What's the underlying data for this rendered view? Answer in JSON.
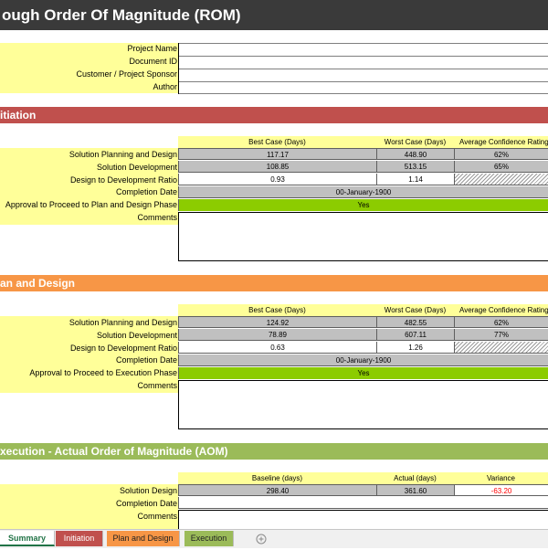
{
  "title": "ough Order Of Magnitude (ROM)",
  "project_fields": [
    {
      "label": "Project Name",
      "value": ""
    },
    {
      "label": "Document ID",
      "value": ""
    },
    {
      "label": "Customer / Project Sponsor",
      "value": ""
    },
    {
      "label": "Author",
      "value": ""
    }
  ],
  "initiation": {
    "heading": "itiation",
    "color": "#c0504d",
    "col_headers": [
      "Best Case (Days)",
      "Worst Case (Days)",
      "Average Confidence Rating"
    ],
    "rows": [
      {
        "label": "Solution Planning and Design",
        "best": "117.17",
        "worst": "448.90",
        "conf": "62%"
      },
      {
        "label": "Solution Development",
        "best": "108.85",
        "worst": "513.15",
        "conf": "65%"
      },
      {
        "label": "Design to Development Ratio",
        "best": "0.93",
        "worst": "1.14",
        "conf": ""
      }
    ],
    "completion_label": "Completion Date",
    "completion_value": "00-January-1900",
    "approval_label": "Approval to Proceed to Plan and Design Phase",
    "approval_value": "Yes",
    "comments_label": "Comments"
  },
  "plan_design": {
    "heading": "an and Design",
    "color": "#f79646",
    "col_headers": [
      "Best Case (Days)",
      "Worst Case (Days)",
      "Average Confidence Rating"
    ],
    "rows": [
      {
        "label": "Solution Planning and Design",
        "best": "124.92",
        "worst": "482.55",
        "conf": "62%"
      },
      {
        "label": "Solution Development",
        "best": "78.89",
        "worst": "607.11",
        "conf": "77%"
      },
      {
        "label": "Design to Development Ratio",
        "best": "0.63",
        "worst": "1.26",
        "conf": ""
      }
    ],
    "completion_label": "Completion Date",
    "completion_value": "00-January-1900",
    "approval_label": "Approval to Proceed to Execution Phase",
    "approval_value": "Yes",
    "comments_label": "Comments"
  },
  "execution": {
    "heading": "xecution - Actual Order of Magnitude (AOM)",
    "color": "#9bbb59",
    "col_headers": [
      "Baseline (days)",
      "Actual (days)",
      "Variance"
    ],
    "row": {
      "label": "Solution Design",
      "baseline": "298.40",
      "actual": "361.60",
      "variance": "-63.20"
    },
    "completion_label": "Completion Date",
    "comments_label": "Comments"
  },
  "tabs": [
    {
      "label": "Summary",
      "active": true
    },
    {
      "label": "Initiation",
      "color": "#c0504d"
    },
    {
      "label": "Plan and Design",
      "color": "#f79646"
    },
    {
      "label": "Execution",
      "color": "#9bbb59"
    }
  ],
  "add_sheet_icon": "plus-circle-icon",
  "colors": {
    "green": "#8ccc00",
    "yellow": "#ffff99",
    "title_bg": "#3a3a3a"
  }
}
